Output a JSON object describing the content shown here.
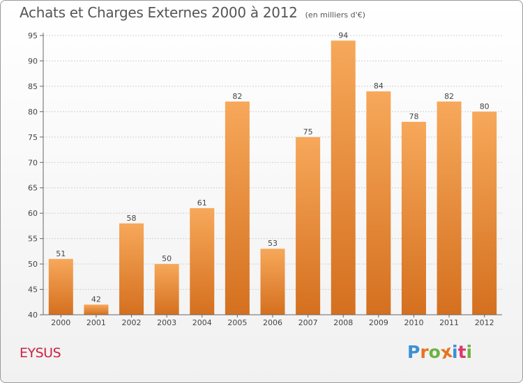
{
  "header": {
    "title": "Achats et Charges Externes 2000 à 2012",
    "subtitle": "(en milliers d'€)"
  },
  "footer": {
    "commune": "EYSUS",
    "logo_letters": [
      "P",
      "r",
      "o",
      "x",
      "i",
      "t",
      "i"
    ],
    "logo_colors": [
      "#3b8fd6",
      "#e8731f",
      "#6cb33f",
      "#e8731f",
      "#3b8fd6",
      "#d93a6a",
      "#6cb33f"
    ]
  },
  "colors": {
    "bar_top": "#f7a85a",
    "bar_bottom": "#d4701f",
    "grid": "#d0d0d0",
    "axis": "#666666"
  },
  "chart_data": {
    "type": "bar",
    "categories": [
      "2000",
      "2001",
      "2002",
      "2003",
      "2004",
      "2005",
      "2006",
      "2007",
      "2008",
      "2009",
      "2010",
      "2011",
      "2012"
    ],
    "values": [
      51,
      42,
      58,
      50,
      61,
      82,
      53,
      75,
      94,
      84,
      78,
      82,
      80
    ],
    "ylim": [
      40,
      95
    ],
    "yticks": [
      40,
      45,
      50,
      55,
      60,
      65,
      70,
      75,
      80,
      85,
      90,
      95
    ],
    "grid": "horizontal dashed",
    "data_labels": true
  }
}
